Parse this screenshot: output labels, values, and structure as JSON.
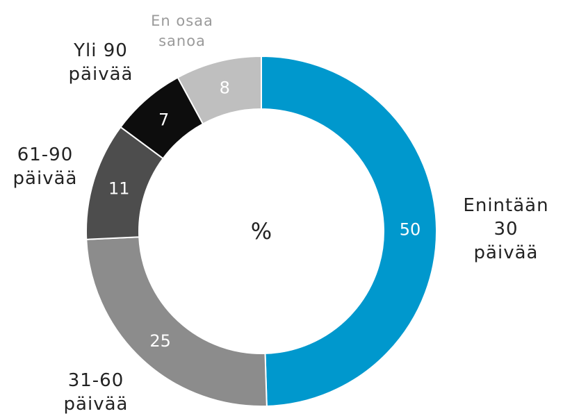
{
  "chart_data": {
    "type": "donut",
    "center_label": "%",
    "categories": [
      "Enintään\n30 päivää",
      "31-60\npäivää",
      "61-90\npäivää",
      "Yli 90\npäivää",
      "En osaa\nsanoa"
    ],
    "values": [
      50,
      25,
      11,
      7,
      8
    ],
    "colors": [
      "#0098cd",
      "#8c8c8c",
      "#4d4d4d",
      "#0d0d0d",
      "#bfbfbf"
    ],
    "label_colors": [
      "#222222",
      "#222222",
      "#222222",
      "#222222",
      "#9a9a9a"
    ]
  }
}
